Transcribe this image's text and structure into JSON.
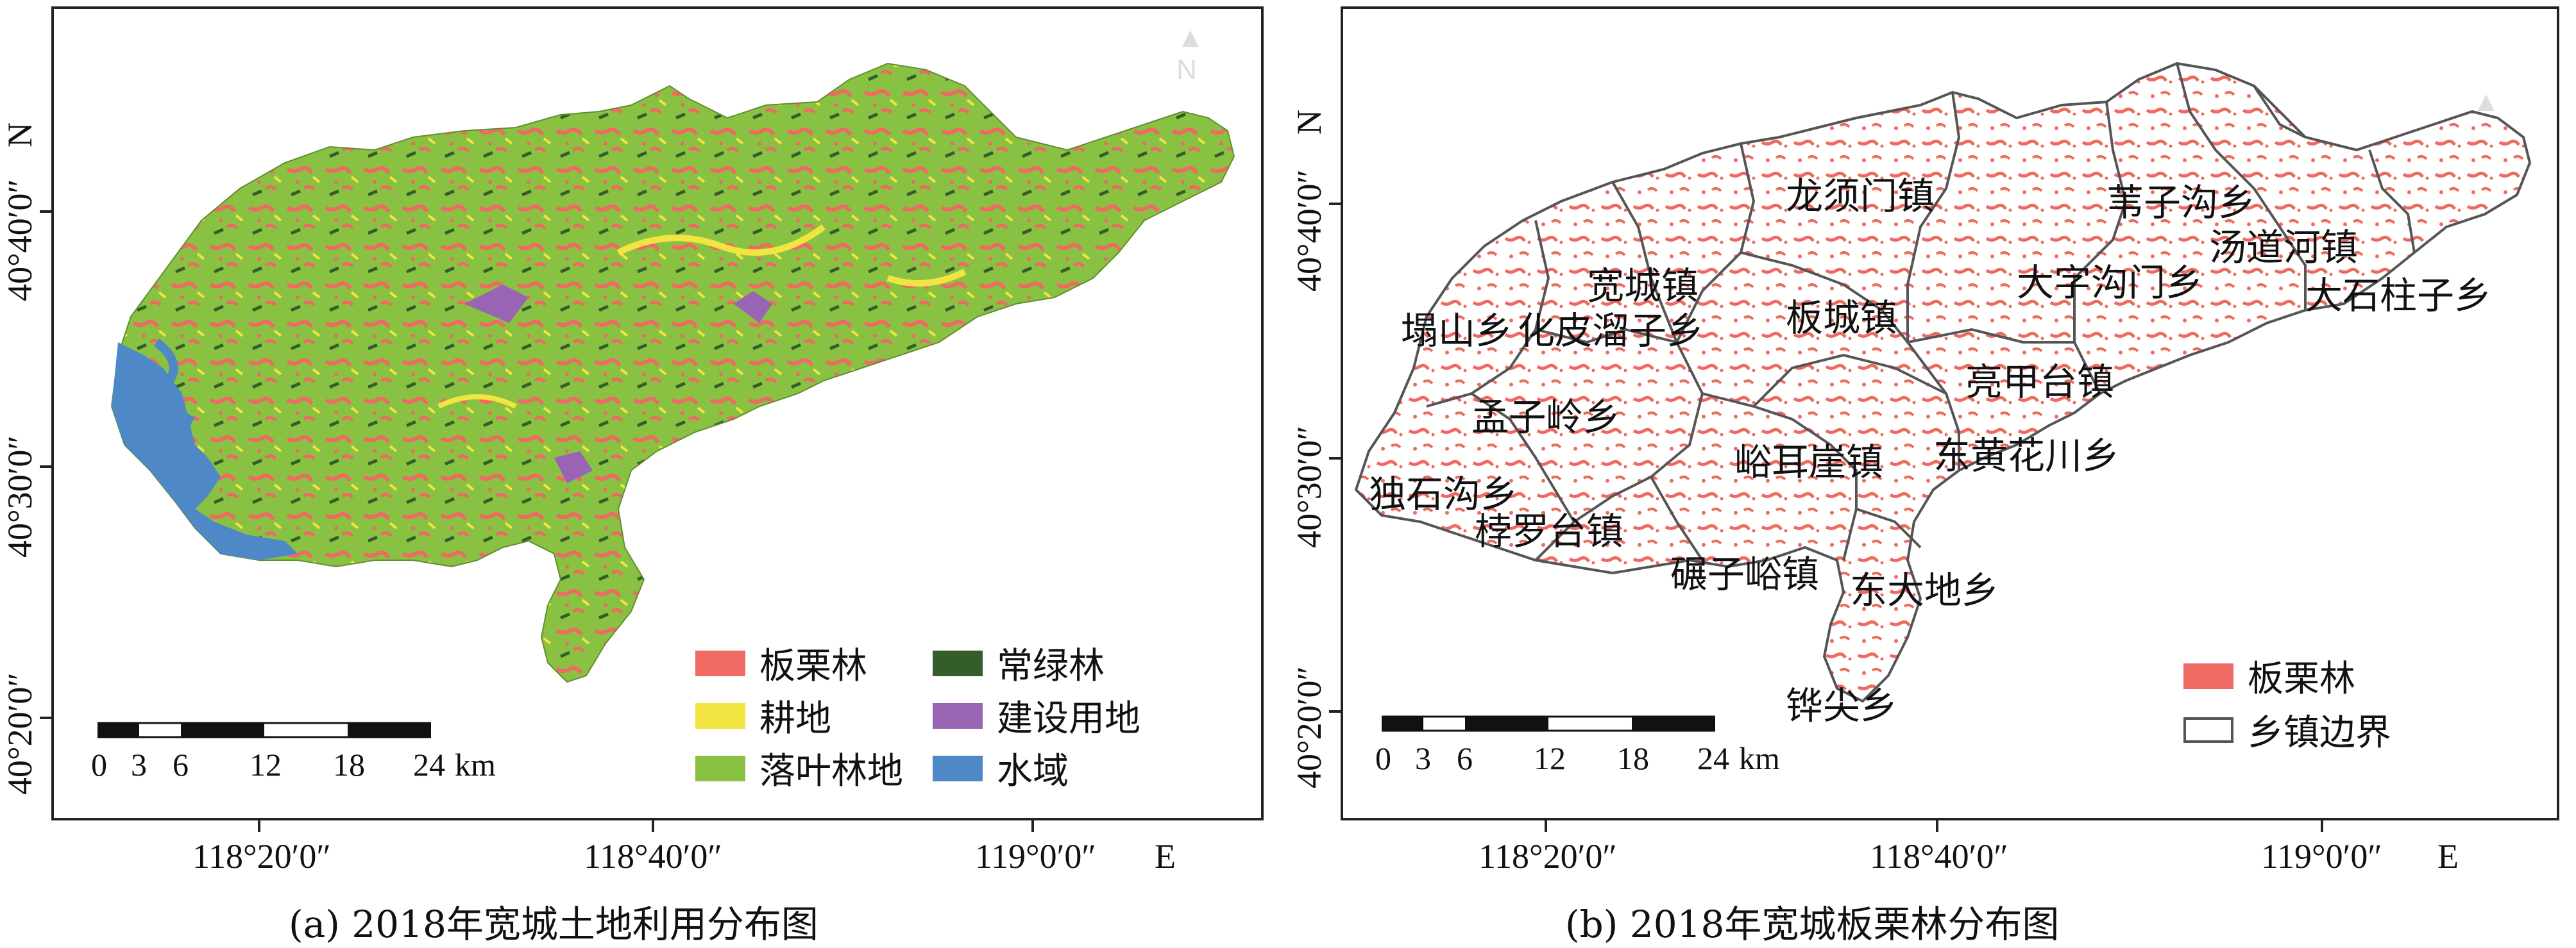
{
  "panel_a": {
    "caption": "(a) 2018年宽城土地利用分布图",
    "x_ticks": [
      "118°20′0″",
      "118°40′0″",
      "119°0′0″"
    ],
    "x_axis_letter": "E",
    "y_ticks": [
      "40°40′0″",
      "40°30′0″",
      "40°20′0″"
    ],
    "y_axis_letter": "N",
    "scale_numbers": [
      "0",
      "3",
      "6",
      "12",
      "18",
      "24"
    ],
    "scale_unit": "km",
    "legend": [
      {
        "label": "板栗林",
        "color": "#ee6a63"
      },
      {
        "label": "耕地",
        "color": "#f2e541"
      },
      {
        "label": "落叶林地",
        "color": "#89c242"
      },
      {
        "label": "常绿林",
        "color": "#355d2c"
      },
      {
        "label": "建设用地",
        "color": "#9a64b4"
      },
      {
        "label": "水域",
        "color": "#4f88c6"
      }
    ]
  },
  "panel_b": {
    "caption": "(b) 2018年宽城板栗林分布图",
    "x_ticks": [
      "118°20′0″",
      "118°40′0″",
      "119°0′0″"
    ],
    "x_axis_letter": "E",
    "y_ticks": [
      "40°40′0″",
      "40°30′0″",
      "40°20′0″"
    ],
    "y_axis_letter": "N",
    "scale_numbers": [
      "0",
      "3",
      "6",
      "12",
      "18",
      "24"
    ],
    "scale_unit": "km",
    "legend": [
      {
        "label": "板栗林",
        "color": "#ee6a63"
      },
      {
        "label": "乡镇边界",
        "color": "#ffffff"
      }
    ],
    "towns": [
      "龙须门镇",
      "苇子沟乡",
      "汤道河镇",
      "宽城镇",
      "大字沟门乡",
      "大石柱子乡",
      "塌山乡",
      "化皮溜子乡",
      "板城镇",
      "亮甲台镇",
      "孟子岭乡",
      "峪耳崖镇",
      "东黄花川乡",
      "独石沟乡",
      "桲罗台镇",
      "碾子峪镇",
      "东大地乡",
      "铧尖乡"
    ]
  }
}
